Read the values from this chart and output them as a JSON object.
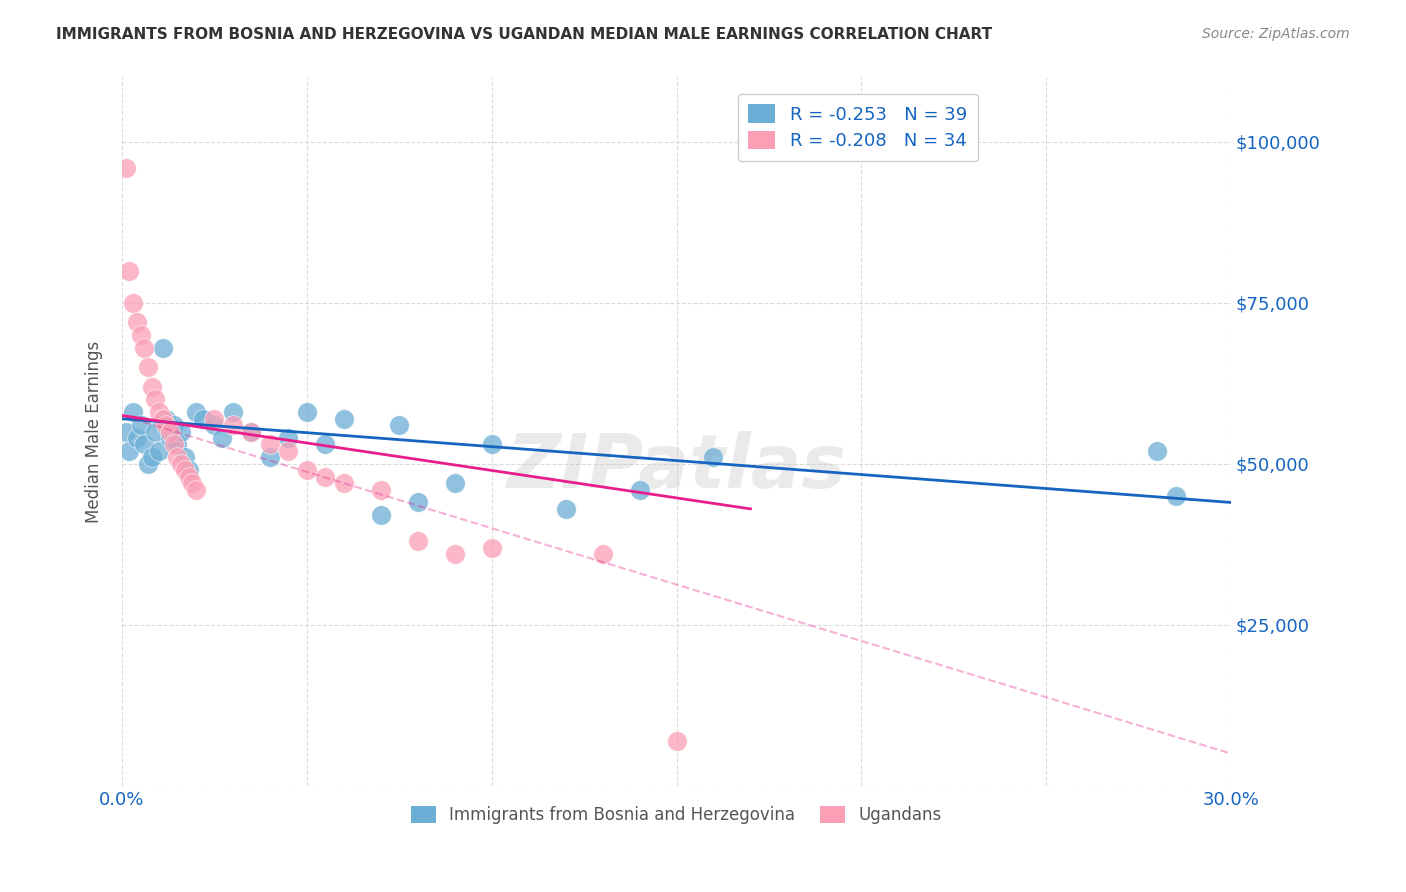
{
  "title": "IMMIGRANTS FROM BOSNIA AND HERZEGOVINA VS UGANDAN MEDIAN MALE EARNINGS CORRELATION CHART",
  "source": "Source: ZipAtlas.com",
  "ylabel": "Median Male Earnings",
  "xlim": [
    0.0,
    0.3
  ],
  "ylim": [
    0,
    110000
  ],
  "yticks": [
    0,
    25000,
    50000,
    75000,
    100000
  ],
  "xticks": [
    0.0,
    0.05,
    0.1,
    0.15,
    0.2,
    0.25,
    0.3
  ],
  "color_blue": "#6baed6",
  "color_pink": "#fa9fb5",
  "line_blue": "#1565c0",
  "line_pink": "#e91e8c",
  "watermark": "ZIPatlas",
  "blue_points": [
    [
      0.001,
      55000
    ],
    [
      0.002,
      52000
    ],
    [
      0.003,
      58000
    ],
    [
      0.004,
      54000
    ],
    [
      0.005,
      56000
    ],
    [
      0.006,
      53000
    ],
    [
      0.007,
      50000
    ],
    [
      0.008,
      51000
    ],
    [
      0.009,
      55000
    ],
    [
      0.01,
      52000
    ],
    [
      0.011,
      68000
    ],
    [
      0.012,
      57000
    ],
    [
      0.013,
      54000
    ],
    [
      0.014,
      56000
    ],
    [
      0.015,
      53000
    ],
    [
      0.016,
      55000
    ],
    [
      0.017,
      51000
    ],
    [
      0.018,
      49000
    ],
    [
      0.02,
      58000
    ],
    [
      0.022,
      57000
    ],
    [
      0.025,
      56000
    ],
    [
      0.027,
      54000
    ],
    [
      0.03,
      58000
    ],
    [
      0.035,
      55000
    ],
    [
      0.04,
      51000
    ],
    [
      0.045,
      54000
    ],
    [
      0.05,
      58000
    ],
    [
      0.055,
      53000
    ],
    [
      0.06,
      57000
    ],
    [
      0.07,
      42000
    ],
    [
      0.075,
      56000
    ],
    [
      0.08,
      44000
    ],
    [
      0.09,
      47000
    ],
    [
      0.1,
      53000
    ],
    [
      0.12,
      43000
    ],
    [
      0.14,
      46000
    ],
    [
      0.16,
      51000
    ],
    [
      0.28,
      52000
    ],
    [
      0.285,
      45000
    ]
  ],
  "pink_points": [
    [
      0.001,
      96000
    ],
    [
      0.002,
      80000
    ],
    [
      0.003,
      75000
    ],
    [
      0.004,
      72000
    ],
    [
      0.005,
      70000
    ],
    [
      0.006,
      68000
    ],
    [
      0.007,
      65000
    ],
    [
      0.008,
      62000
    ],
    [
      0.009,
      60000
    ],
    [
      0.01,
      58000
    ],
    [
      0.011,
      57000
    ],
    [
      0.012,
      56000
    ],
    [
      0.013,
      55000
    ],
    [
      0.014,
      53000
    ],
    [
      0.015,
      51000
    ],
    [
      0.016,
      50000
    ],
    [
      0.017,
      49000
    ],
    [
      0.018,
      48000
    ],
    [
      0.019,
      47000
    ],
    [
      0.02,
      46000
    ],
    [
      0.025,
      57000
    ],
    [
      0.03,
      56000
    ],
    [
      0.035,
      55000
    ],
    [
      0.04,
      53000
    ],
    [
      0.045,
      52000
    ],
    [
      0.05,
      49000
    ],
    [
      0.055,
      48000
    ],
    [
      0.06,
      47000
    ],
    [
      0.07,
      46000
    ],
    [
      0.08,
      38000
    ],
    [
      0.09,
      36000
    ],
    [
      0.1,
      37000
    ],
    [
      0.13,
      36000
    ],
    [
      0.15,
      7000
    ]
  ],
  "blue_line_x": [
    0.0,
    0.3
  ],
  "blue_line_y": [
    57000,
    44000
  ],
  "pink_line_x": [
    0.0,
    0.17
  ],
  "pink_line_y": [
    57500,
    43000
  ],
  "dashed_line_x": [
    0.0,
    0.3
  ],
  "dashed_line_y": [
    57500,
    5000
  ],
  "background_color": "#ffffff",
  "grid_color": "#cccccc",
  "title_color": "#333333",
  "axis_label_color": "#555555",
  "right_tick_color": "#1565c0",
  "bottom_tick_color": "#1565c0",
  "legend_text_color": "#1565c0",
  "bottom_legend_text_color": "#555555",
  "legend1_label": "R = -0.253   N = 39",
  "legend2_label": "R = -0.208   N = 34",
  "bottom_legend1_label": "Immigrants from Bosnia and Herzegovina",
  "bottom_legend2_label": "Ugandans"
}
